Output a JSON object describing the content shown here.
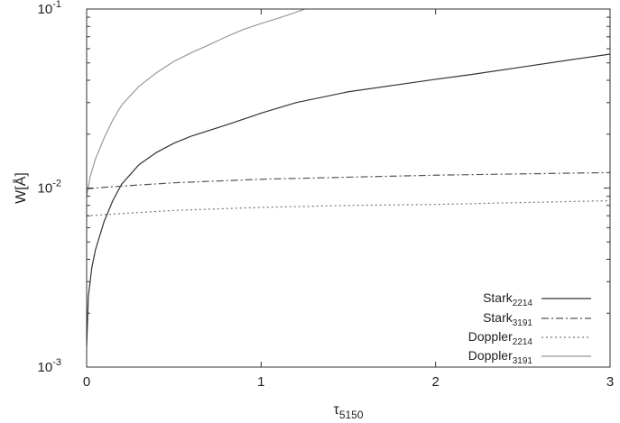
{
  "chart_data": {
    "type": "line",
    "xlabel": {
      "base": "τ",
      "sub": "5150"
    },
    "ylabel": "W[Å]",
    "xlim": [
      0,
      3
    ],
    "ylim": [
      0.001,
      0.1
    ],
    "yscale": "log",
    "grid": false,
    "legend_position": "bottom-right",
    "x_ticks": [
      {
        "value": 0,
        "label": "0"
      },
      {
        "value": 1,
        "label": "1"
      },
      {
        "value": 2,
        "label": "2"
      },
      {
        "value": 3,
        "label": "3"
      }
    ],
    "y_ticks": [
      {
        "value": 0.001,
        "base": "10",
        "exp": "-3"
      },
      {
        "value": 0.01,
        "base": "10",
        "exp": "-2"
      },
      {
        "value": 0.1,
        "base": "10",
        "exp": "-1"
      }
    ],
    "series": [
      {
        "name": "Stark",
        "name_sub": "2214",
        "color": "#333333",
        "dash": "",
        "points": [
          [
            0.0,
            0.0013
          ],
          [
            0.01,
            0.0025
          ],
          [
            0.03,
            0.0036
          ],
          [
            0.05,
            0.0045
          ],
          [
            0.1,
            0.0065
          ],
          [
            0.15,
            0.0085
          ],
          [
            0.2,
            0.0105
          ],
          [
            0.3,
            0.0135
          ],
          [
            0.4,
            0.0158
          ],
          [
            0.5,
            0.0178
          ],
          [
            0.6,
            0.0195
          ],
          [
            0.8,
            0.0225
          ],
          [
            1.0,
            0.0262
          ],
          [
            1.2,
            0.03
          ],
          [
            1.5,
            0.0345
          ],
          [
            1.8,
            0.038
          ],
          [
            2.0,
            0.0405
          ],
          [
            2.2,
            0.043
          ],
          [
            2.5,
            0.0475
          ],
          [
            2.8,
            0.0525
          ],
          [
            3.0,
            0.056
          ]
        ]
      },
      {
        "name": "Stark",
        "name_sub": "3191",
        "color": "#555555",
        "dash": "8,3,2,3",
        "points": [
          [
            0.0,
            0.0099
          ],
          [
            0.1,
            0.0101
          ],
          [
            0.3,
            0.0104
          ],
          [
            0.5,
            0.0107
          ],
          [
            1.0,
            0.0112
          ],
          [
            1.5,
            0.0115
          ],
          [
            2.0,
            0.0118
          ],
          [
            2.5,
            0.012
          ],
          [
            3.0,
            0.0122
          ]
        ]
      },
      {
        "name": "Doppler",
        "name_sub": "2214",
        "color": "#777777",
        "dash": "2,3",
        "points": [
          [
            0.0,
            0.007
          ],
          [
            0.1,
            0.0071
          ],
          [
            0.3,
            0.0073
          ],
          [
            0.5,
            0.0075
          ],
          [
            1.0,
            0.0078
          ],
          [
            1.5,
            0.008
          ],
          [
            2.0,
            0.0081
          ],
          [
            2.5,
            0.0083
          ],
          [
            3.0,
            0.0085
          ]
        ]
      },
      {
        "name": "Doppler",
        "name_sub": "3191",
        "color": "#999999",
        "dash": "",
        "points": [
          [
            0.0,
            0.009
          ],
          [
            0.02,
            0.0115
          ],
          [
            0.05,
            0.0145
          ],
          [
            0.1,
            0.019
          ],
          [
            0.15,
            0.024
          ],
          [
            0.2,
            0.029
          ],
          [
            0.3,
            0.037
          ],
          [
            0.4,
            0.044
          ],
          [
            0.5,
            0.051
          ],
          [
            0.6,
            0.057
          ],
          [
            0.7,
            0.063
          ],
          [
            0.8,
            0.07
          ],
          [
            0.9,
            0.077
          ],
          [
            1.0,
            0.083
          ],
          [
            1.1,
            0.089
          ],
          [
            1.2,
            0.096
          ],
          [
            1.25,
            0.1
          ]
        ]
      }
    ]
  }
}
